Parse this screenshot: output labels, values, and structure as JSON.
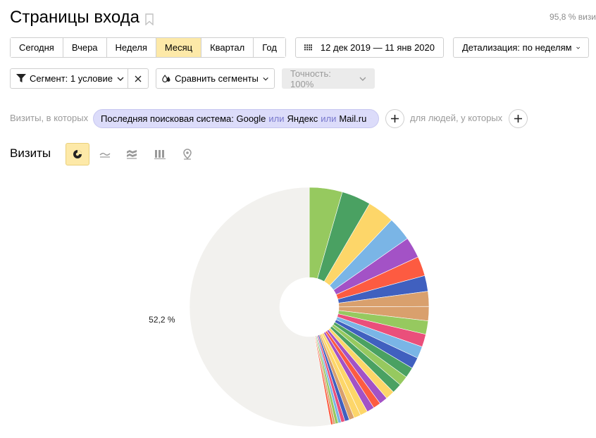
{
  "header": {
    "title": "Страницы входа",
    "sampling": "95,8 % визи"
  },
  "period_buttons": [
    {
      "label": "Сегодня",
      "active": false
    },
    {
      "label": "Вчера",
      "active": false
    },
    {
      "label": "Неделя",
      "active": false
    },
    {
      "label": "Месяц",
      "active": true
    },
    {
      "label": "Квартал",
      "active": false
    },
    {
      "label": "Год",
      "active": false
    }
  ],
  "date_range": "12 дек 2019 — 11 янв 2020",
  "detail": "Детализация: по неделям",
  "segment": {
    "label": "Сегмент: 1 условие",
    "compare": "Сравнить сегменты",
    "accuracy": "Точность: 100%"
  },
  "conditions": {
    "prefix": "Визиты, в которых",
    "chip": {
      "part1": "Последняя поисковая система: Google",
      "or1": "или",
      "part2": "Яндекс",
      "or2": "или",
      "part3": "Mail.ru"
    },
    "people": "для людей, у которых"
  },
  "chart_section": {
    "title": "Визиты",
    "views": [
      "pie-icon",
      "line-icon",
      "area-icon",
      "bar-icon",
      "map-icon"
    ],
    "active_view": "pie-icon"
  },
  "chart_data": {
    "type": "pie",
    "donut": true,
    "slices": [
      {
        "value": 4.4,
        "color": "#96c95f"
      },
      {
        "value": 3.9,
        "color": "#4aa162"
      },
      {
        "value": 3.6,
        "color": "#fdd669"
      },
      {
        "value": 3.2,
        "color": "#7ab5e6"
      },
      {
        "value": 2.8,
        "color": "#a352c6"
      },
      {
        "value": 2.6,
        "color": "#fd5b41"
      },
      {
        "value": 2.1,
        "color": "#4060bf"
      },
      {
        "value": 2.0,
        "color": "#d9a06d"
      },
      {
        "value": 1.9,
        "color": "#d9a06d"
      },
      {
        "value": 1.8,
        "color": "#96c95f"
      },
      {
        "value": 1.7,
        "color": "#ea4f7b"
      },
      {
        "value": 1.6,
        "color": "#7ab5e6"
      },
      {
        "value": 1.5,
        "color": "#4060bf"
      },
      {
        "value": 1.4,
        "color": "#4aa162"
      },
      {
        "value": 1.3,
        "color": "#96c95f"
      },
      {
        "value": 1.3,
        "color": "#4aa162"
      },
      {
        "value": 1.2,
        "color": "#fdd669"
      },
      {
        "value": 1.1,
        "color": "#a352c6"
      },
      {
        "value": 1.0,
        "color": "#fd5b41"
      },
      {
        "value": 1.0,
        "color": "#a352c6"
      },
      {
        "value": 1.0,
        "color": "#fdd669"
      },
      {
        "value": 0.9,
        "color": "#fdd669"
      },
      {
        "value": 0.7,
        "color": "#d9a06d"
      },
      {
        "value": 0.6,
        "color": "#4060bf"
      },
      {
        "value": 0.5,
        "color": "#ea4f7b"
      },
      {
        "value": 0.4,
        "color": "#7ab5e6"
      },
      {
        "value": 0.4,
        "color": "#96c95f"
      },
      {
        "value": 0.3,
        "color": "#d9a06d"
      },
      {
        "value": 0.3,
        "color": "#fd5b41"
      },
      {
        "value": 52.2,
        "color": "#f2f1ee",
        "label": "52,2 %"
      }
    ]
  }
}
